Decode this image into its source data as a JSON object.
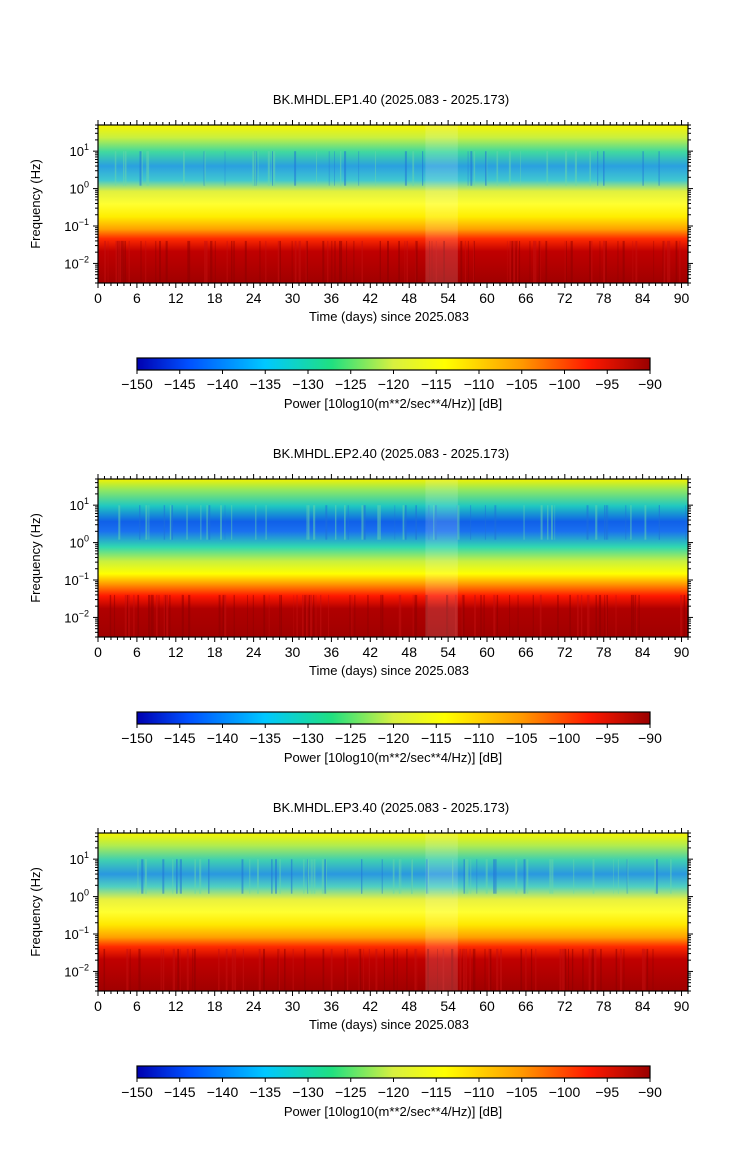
{
  "chart_data": [
    {
      "type": "heatmap",
      "title": "BK.MHDL.EP1.40 (2025.083 - 2025.173)",
      "xlabel": "Time (days) since 2025.083",
      "ylabel": "Frequency (Hz)",
      "x_ticks": [
        "0",
        "6",
        "12",
        "18",
        "24",
        "30",
        "36",
        "42",
        "48",
        "54",
        "60",
        "66",
        "72",
        "78",
        "84",
        "90"
      ],
      "y_ticks": [
        {
          "base": "10",
          "exp": "1"
        },
        {
          "base": "10",
          "exp": "0"
        },
        {
          "base": "10",
          "exp": "−1"
        },
        {
          "base": "10",
          "exp": "−2"
        }
      ],
      "xlim": [
        0,
        91
      ],
      "y_scale": "log",
      "ylim": [
        0.003,
        50
      ],
      "bands": [
        {
          "freq_low": 10,
          "freq_high": 50,
          "power_db": -118
        },
        {
          "freq_low": 1.2,
          "freq_high": 10,
          "power_db": -137
        },
        {
          "freq_low": 0.1,
          "freq_high": 1.2,
          "power_db": -117
        },
        {
          "freq_low": 0.04,
          "freq_high": 0.1,
          "power_db": -100
        },
        {
          "freq_low": 0.003,
          "freq_high": 0.04,
          "power_db": -92
        }
      ],
      "colorbar": {
        "label": "Power [10log10(m**2/sec**4/Hz)] [dB]",
        "ticks": [
          "−150",
          "−145",
          "−140",
          "−135",
          "−130",
          "−125",
          "−120",
          "−115",
          "−110",
          "−105",
          "−100",
          "−95",
          "−90"
        ],
        "range": [
          -150,
          -90
        ]
      }
    },
    {
      "type": "heatmap",
      "title": "BK.MHDL.EP2.40 (2025.083 - 2025.173)",
      "xlabel": "Time (days) since 2025.083",
      "ylabel": "Frequency (Hz)",
      "x_ticks": [
        "0",
        "6",
        "12",
        "18",
        "24",
        "30",
        "36",
        "42",
        "48",
        "54",
        "60",
        "66",
        "72",
        "78",
        "84",
        "90"
      ],
      "y_ticks": [
        {
          "base": "10",
          "exp": "1"
        },
        {
          "base": "10",
          "exp": "0"
        },
        {
          "base": "10",
          "exp": "−1"
        },
        {
          "base": "10",
          "exp": "−2"
        }
      ],
      "xlim": [
        0,
        91
      ],
      "y_scale": "log",
      "ylim": [
        0.003,
        50
      ],
      "bands": [
        {
          "freq_low": 10,
          "freq_high": 50,
          "power_db": -122
        },
        {
          "freq_low": 0.6,
          "freq_high": 10,
          "power_db": -143
        },
        {
          "freq_low": 0.12,
          "freq_high": 0.6,
          "power_db": -126
        },
        {
          "freq_low": 0.04,
          "freq_high": 0.12,
          "power_db": -105
        },
        {
          "freq_low": 0.003,
          "freq_high": 0.04,
          "power_db": -92
        }
      ],
      "colorbar": {
        "label": "Power [10log10(m**2/sec**4/Hz)] [dB]",
        "ticks": [
          "−150",
          "−145",
          "−140",
          "−135",
          "−130",
          "−125",
          "−120",
          "−115",
          "−110",
          "−105",
          "−100",
          "−95",
          "−90"
        ],
        "range": [
          -150,
          -90
        ]
      }
    },
    {
      "type": "heatmap",
      "title": "BK.MHDL.EP3.40 (2025.083 - 2025.173)",
      "xlabel": "Time (days) since 2025.083",
      "ylabel": "Frequency (Hz)",
      "x_ticks": [
        "0",
        "6",
        "12",
        "18",
        "24",
        "30",
        "36",
        "42",
        "48",
        "54",
        "60",
        "66",
        "72",
        "78",
        "84",
        "90"
      ],
      "y_ticks": [
        {
          "base": "10",
          "exp": "1"
        },
        {
          "base": "10",
          "exp": "0"
        },
        {
          "base": "10",
          "exp": "−1"
        },
        {
          "base": "10",
          "exp": "−2"
        }
      ],
      "xlim": [
        0,
        91
      ],
      "y_scale": "log",
      "ylim": [
        0.003,
        50
      ],
      "bands": [
        {
          "freq_low": 10,
          "freq_high": 50,
          "power_db": -120
        },
        {
          "freq_low": 1.2,
          "freq_high": 10,
          "power_db": -137
        },
        {
          "freq_low": 0.1,
          "freq_high": 1.2,
          "power_db": -117
        },
        {
          "freq_low": 0.04,
          "freq_high": 0.1,
          "power_db": -100
        },
        {
          "freq_low": 0.003,
          "freq_high": 0.04,
          "power_db": -92
        }
      ],
      "colorbar": {
        "label": "Power [10log10(m**2/sec**4/Hz)] [dB]",
        "ticks": [
          "−150",
          "−145",
          "−140",
          "−135",
          "−130",
          "−125",
          "−120",
          "−115",
          "−110",
          "−105",
          "−100",
          "−95",
          "−90"
        ],
        "range": [
          -150,
          -90
        ]
      }
    }
  ]
}
